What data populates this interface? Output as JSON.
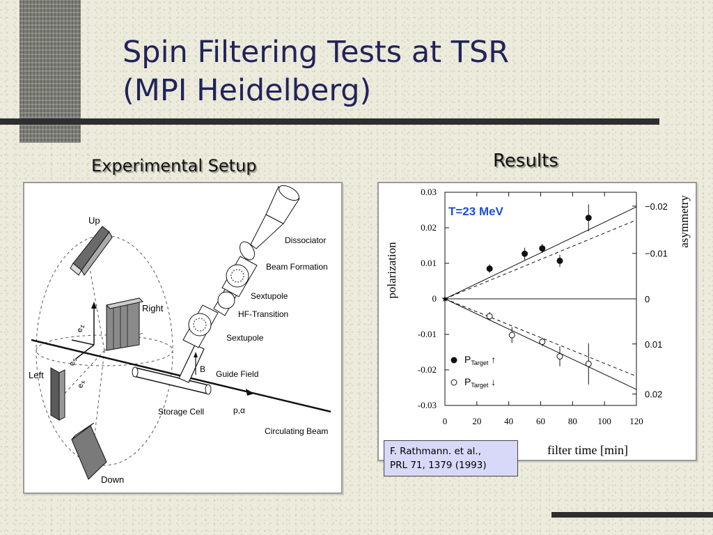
{
  "slide": {
    "title_line1": "Spin Filtering Tests at TSR",
    "title_line2": "(MPI Heidelberg)",
    "setup_heading": "Experimental Setup",
    "results_heading": "Results",
    "colors": {
      "title": "#22225a",
      "background": "#ecebdc",
      "citation_box": "#d8d8f8",
      "energy_label": "#1a4fd6"
    }
  },
  "setup_diagram": {
    "labels": {
      "up": "Up",
      "right": "Right",
      "left": "Left",
      "down": "Down",
      "dissociator": "Dissociator",
      "beam_formation": "Beam Formation",
      "sextupole_top": "Sextupole",
      "hf_transition": "HF-Transition",
      "sextupole_bottom": "Sextupole",
      "guide_field": "Guide Field",
      "b_vector": "B",
      "storage_cell": "Storage Cell",
      "beam_particles": "p,α",
      "circulating_beam": "Circulating Beam",
      "ez": "e",
      "ez_sub": "z",
      "es": "e",
      "es_sub": "s",
      "ex": "e",
      "ex_sub": "x"
    }
  },
  "chart_data": {
    "type": "scatter",
    "title": "T=23 MeV",
    "xlabel": "filter time [min]",
    "ylabel": "polarization",
    "y2label": "asymmetry",
    "xlim": [
      0,
      120
    ],
    "ylim": [
      -0.03,
      0.03
    ],
    "x_ticks": [
      "0",
      "20",
      "40",
      "60",
      "80",
      "100",
      "120"
    ],
    "y_ticks": [
      "0.03",
      "0.02",
      "0.01",
      "0",
      "-0.01",
      "-0.02",
      "-0.03"
    ],
    "y2_ticks": [
      "−0.02",
      "−0.01",
      "0",
      "0.01",
      "0.02"
    ],
    "grid": false,
    "legend_position": "bottom-left",
    "series": [
      {
        "name": "P Target ↑",
        "legend_main": "P",
        "legend_sub": "Target",
        "legend_arrow": "↑",
        "marker": "filled-circle",
        "x": [
          28,
          50,
          61,
          72,
          90
        ],
        "y": [
          0.0085,
          0.0127,
          0.0142,
          0.0107,
          0.0228
        ],
        "err": [
          0.0012,
          0.0017,
          0.0013,
          0.0017,
          0.0038
        ]
      },
      {
        "name": "P Target ↓",
        "legend_main": "P",
        "legend_sub": "Target",
        "legend_arrow": "↓",
        "marker": "open-circle",
        "x": [
          28,
          42,
          61,
          72,
          90
        ],
        "y": [
          -0.0049,
          -0.0102,
          -0.0121,
          -0.0162,
          -0.0183
        ],
        "err": [
          0.0012,
          0.0022,
          0.0012,
          0.0028,
          0.0058
        ]
      }
    ],
    "fits": [
      {
        "style": "solid",
        "x": [
          0,
          120
        ],
        "y": [
          0.0,
          0.0259
        ]
      },
      {
        "style": "dashed",
        "x": [
          0,
          120
        ],
        "y": [
          0.0,
          0.0222
        ]
      },
      {
        "style": "solid",
        "x": [
          0,
          120
        ],
        "y": [
          0.0,
          -0.0255
        ]
      },
      {
        "style": "dashed",
        "x": [
          0,
          120
        ],
        "y": [
          0.0,
          -0.0218
        ]
      }
    ],
    "start_marker": {
      "x": 0,
      "y": 0.0,
      "symbol": "★"
    }
  },
  "citation": {
    "line1": "F. Rathmann. et al.,",
    "line2": "PRL 71, 1379 (1993)"
  }
}
